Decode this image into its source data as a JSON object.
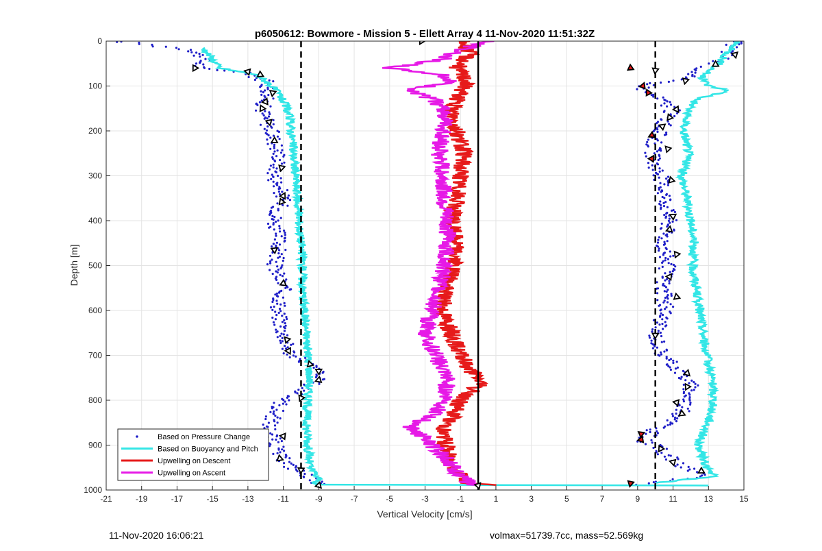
{
  "chart_data": {
    "type": "scatter",
    "title": "p6050612: Bowmore - Mission 5 - Ellett Array 4 11-Nov-2020 11:51:32Z",
    "xlabel": "Vertical Velocity [cm/s]",
    "ylabel": "Depth [m]",
    "xlim": [
      -21,
      15
    ],
    "ylim": [
      0,
      1000
    ],
    "y_reversed": true,
    "grid": true,
    "xticks": [
      -21,
      -19,
      -17,
      -15,
      -13,
      -11,
      -9,
      -7,
      -5,
      -3,
      -1,
      1,
      3,
      5,
      7,
      9,
      11,
      13,
      15
    ],
    "yticks": [
      0,
      100,
      200,
      300,
      400,
      500,
      600,
      700,
      800,
      900,
      1000
    ],
    "legend_position": "bottom-left",
    "reference_lines": [
      {
        "x": -10,
        "style": "dashed",
        "color": "#000000"
      },
      {
        "x": 10,
        "style": "dashed",
        "color": "#000000"
      },
      {
        "x": 0,
        "style": "solid",
        "color": "#000000"
      }
    ],
    "series": [
      {
        "name": "Based on Pressure Change",
        "color": "#1f1fc8",
        "marker": "dot",
        "profiles": [
          {
            "depth": [
              0,
              20,
              40,
              60,
              70,
              90,
              110,
              130,
              150,
              170,
              190,
              220,
              260,
              300,
              350,
              400,
              450,
              500,
              550,
              600,
              650,
              680,
              700,
              720,
              740,
              760,
              780,
              800,
              830,
              860,
              890,
              920,
              950,
              970,
              990
            ],
            "velocity": [
              -20.5,
              -16.0,
              -15.5,
              -15.8,
              -13.0,
              -12.0,
              -11.8,
              -12.0,
              -12.2,
              -12.0,
              -11.8,
              -11.5,
              -11.2,
              -11.5,
              -11.0,
              -11.5,
              -11.2,
              -11.5,
              -11.0,
              -11.3,
              -11.0,
              -10.8,
              -10.5,
              -9.5,
              -9.0,
              -9.2,
              -10.0,
              -11.0,
              -11.5,
              -11.8,
              -11.5,
              -11.3,
              -10.5,
              -9.5,
              -9.0
            ]
          },
          {
            "depth": [
              0,
              20,
              40,
              60,
              80,
              100,
              110,
              130,
              150,
              170,
              190,
              220,
              260,
              300,
              350,
              400,
              450,
              500,
              550,
              600,
              650,
              700,
              740,
              770,
              800,
              840,
              870,
              890,
              910,
              940,
              970,
              990
            ],
            "velocity": [
              14.5,
              14.2,
              13.8,
              12.8,
              11.8,
              9.5,
              9.3,
              10.3,
              11.0,
              10.7,
              10.4,
              10.0,
              9.8,
              10.3,
              10.6,
              10.8,
              10.5,
              10.7,
              10.4,
              10.6,
              10.0,
              10.4,
              11.5,
              12.0,
              11.8,
              11.3,
              9.8,
              9.4,
              10.3,
              11.2,
              12.6,
              8.6
            ]
          }
        ]
      },
      {
        "name": "Based on Buoyancy and Pitch",
        "color": "#33e6e6",
        "marker": "line",
        "profiles": [
          {
            "depth": [
              15,
              40,
              60,
              75,
              95,
              120,
              150,
              180,
              220,
              260,
              300,
              350,
              400,
              450,
              500,
              550,
              600,
              650,
              700,
              750,
              800,
              850,
              900,
              950,
              975,
              988
            ],
            "velocity": [
              -15.5,
              -15.0,
              -14.6,
              -12.5,
              -11.8,
              -11.2,
              -10.8,
              -10.6,
              -10.5,
              -10.4,
              -10.3,
              -10.2,
              -10.1,
              -10.0,
              -9.9,
              -9.9,
              -9.8,
              -9.7,
              -9.6,
              -9.5,
              -9.6,
              -9.7,
              -9.6,
              -9.5,
              -9.0,
              -9.2
            ]
          },
          {
            "depth": [
              988,
              990
            ],
            "velocity": [
              -9.2,
              13.0
            ]
          },
          {
            "depth": [
              0,
              20,
              50,
              80,
              100,
              110,
              130,
              160,
              200,
              250,
              300,
              350,
              400,
              450,
              500,
              550,
              600,
              650,
              700,
              750,
              800,
              850,
              900,
              950,
              970,
              985
            ],
            "velocity": [
              14.6,
              14.2,
              13.6,
              12.6,
              13.0,
              14.2,
              12.3,
              11.8,
              11.6,
              11.9,
              11.5,
              11.8,
              12.0,
              12.2,
              12.1,
              12.3,
              12.5,
              12.7,
              12.9,
              13.2,
              13.3,
              13.0,
              12.4,
              12.9,
              13.3,
              9.8
            ]
          }
        ]
      },
      {
        "name": "Upwelling on Descent",
        "color": "#e61a1a",
        "marker": "line",
        "depth": [
          0,
          30,
          60,
          90,
          100,
          120,
          150,
          200,
          250,
          300,
          350,
          400,
          450,
          500,
          550,
          600,
          650,
          700,
          730,
          760,
          800,
          840,
          870,
          900,
          930,
          960,
          985,
          990
        ],
        "velocity": [
          -0.8,
          -0.5,
          -1.2,
          -0.6,
          -0.8,
          -1.0,
          -1.5,
          -1.2,
          -0.8,
          -1.0,
          -1.2,
          -1.5,
          -1.2,
          -1.4,
          -1.8,
          -2.0,
          -1.5,
          -1.0,
          -0.5,
          0.2,
          -1.0,
          -1.5,
          -2.0,
          -1.8,
          -1.6,
          -1.2,
          -0.5,
          1.5
        ]
      },
      {
        "name": "Upwelling on Ascent",
        "color": "#e619e6",
        "marker": "line",
        "depth": [
          0,
          20,
          40,
          60,
          75,
          90,
          110,
          130,
          160,
          200,
          250,
          300,
          350,
          400,
          450,
          500,
          550,
          600,
          650,
          700,
          750,
          800,
          830,
          860,
          880,
          900,
          930,
          960,
          985,
          990
        ],
        "velocity": [
          0.5,
          -1.0,
          -2.0,
          -5.0,
          -2.0,
          -1.5,
          -4.0,
          -2.5,
          -1.8,
          -2.0,
          -2.2,
          -2.0,
          -1.9,
          -1.8,
          -1.7,
          -1.9,
          -2.2,
          -2.6,
          -3.0,
          -2.4,
          -1.8,
          -1.8,
          -2.5,
          -3.8,
          -3.2,
          -2.6,
          -1.8,
          -1.2,
          -0.5,
          -0.2
        ]
      }
    ],
    "markers": {
      "triangles": [
        {
          "velocity": -16.0,
          "depth": 60,
          "color": "#ffffff"
        },
        {
          "velocity": -13.0,
          "depth": 68,
          "color": "#ffffff"
        },
        {
          "velocity": -12.3,
          "depth": 75,
          "color": "#ffffff"
        },
        {
          "velocity": -11.6,
          "depth": 115,
          "color": "#ffffff"
        },
        {
          "velocity": -12.0,
          "depth": 135,
          "color": "#ffffff"
        },
        {
          "velocity": -12.2,
          "depth": 150,
          "color": "#ffffff"
        },
        {
          "velocity": -11.8,
          "depth": 180,
          "color": "#ffffff"
        },
        {
          "velocity": -11.5,
          "depth": 222,
          "color": "#ffffff"
        },
        {
          "velocity": -11.1,
          "depth": 282,
          "color": "#ffffff"
        },
        {
          "velocity": -11.0,
          "depth": 345,
          "color": "#ffffff"
        },
        {
          "velocity": -11.1,
          "depth": 358,
          "color": "#ffffff"
        },
        {
          "velocity": -11.5,
          "depth": 465,
          "color": "#ffffff"
        },
        {
          "velocity": -11.0,
          "depth": 540,
          "color": "#ffffff"
        },
        {
          "velocity": -10.8,
          "depth": 665,
          "color": "#ffffff"
        },
        {
          "velocity": -10.7,
          "depth": 690,
          "color": "#ffffff"
        },
        {
          "velocity": -9.5,
          "depth": 720,
          "color": "#ffffff"
        },
        {
          "velocity": -9.0,
          "depth": 735,
          "color": "#ffffff"
        },
        {
          "velocity": -9.0,
          "depth": 755,
          "color": "#ffffff"
        },
        {
          "velocity": -10.0,
          "depth": 795,
          "color": "#ffffff"
        },
        {
          "velocity": -11.0,
          "depth": 880,
          "color": "#ffffff"
        },
        {
          "velocity": -11.2,
          "depth": 930,
          "color": "#ffffff"
        },
        {
          "velocity": -10.0,
          "depth": 955,
          "color": "#ffffff"
        },
        {
          "velocity": -9.0,
          "depth": 990,
          "color": "#ffffff"
        },
        {
          "velocity": -3.2,
          "depth": 0,
          "color": "#ffffff"
        },
        {
          "velocity": 0.0,
          "depth": 990,
          "color": "#ffffff"
        },
        {
          "velocity": 8.6,
          "depth": 60,
          "color": "#e61a1a"
        },
        {
          "velocity": 10.0,
          "depth": 65,
          "color": "#ffffff"
        },
        {
          "velocity": 9.3,
          "depth": 100,
          "color": "#e61a1a"
        },
        {
          "velocity": 9.6,
          "depth": 115,
          "color": "#e61a1a"
        },
        {
          "velocity": 14.5,
          "depth": 30,
          "color": "#ffffff"
        },
        {
          "velocity": 13.4,
          "depth": 52,
          "color": "#ffffff"
        },
        {
          "velocity": 11.7,
          "depth": 88,
          "color": "#ffffff"
        },
        {
          "velocity": 11.2,
          "depth": 152,
          "color": "#ffffff"
        },
        {
          "velocity": 10.8,
          "depth": 170,
          "color": "#ffffff"
        },
        {
          "velocity": 10.4,
          "depth": 190,
          "color": "#ffffff"
        },
        {
          "velocity": 9.8,
          "depth": 210,
          "color": "#e61a1a"
        },
        {
          "velocity": 10.7,
          "depth": 240,
          "color": "#ffffff"
        },
        {
          "velocity": 9.8,
          "depth": 262,
          "color": "#e61a1a"
        },
        {
          "velocity": 10.9,
          "depth": 310,
          "color": "#ffffff"
        },
        {
          "velocity": 11.0,
          "depth": 390,
          "color": "#ffffff"
        },
        {
          "velocity": 10.8,
          "depth": 420,
          "color": "#ffffff"
        },
        {
          "velocity": 11.2,
          "depth": 475,
          "color": "#ffffff"
        },
        {
          "velocity": 10.8,
          "depth": 525,
          "color": "#ffffff"
        },
        {
          "velocity": 11.2,
          "depth": 570,
          "color": "#ffffff"
        },
        {
          "velocity": 10.0,
          "depth": 655,
          "color": "#ffffff"
        },
        {
          "velocity": 11.8,
          "depth": 740,
          "color": "#ffffff"
        },
        {
          "velocity": 11.8,
          "depth": 770,
          "color": "#ffffff"
        },
        {
          "velocity": 11.2,
          "depth": 805,
          "color": "#ffffff"
        },
        {
          "velocity": 11.5,
          "depth": 830,
          "color": "#ffffff"
        },
        {
          "velocity": 9.2,
          "depth": 875,
          "color": "#e61a1a"
        },
        {
          "velocity": 9.2,
          "depth": 888,
          "color": "#e61a1a"
        },
        {
          "velocity": 10.3,
          "depth": 908,
          "color": "#ffffff"
        },
        {
          "velocity": 11.0,
          "depth": 938,
          "color": "#ffffff"
        },
        {
          "velocity": 12.6,
          "depth": 958,
          "color": "#ffffff"
        },
        {
          "velocity": 8.6,
          "depth": 985,
          "color": "#e61a1a"
        }
      ]
    }
  },
  "footer": {
    "left": "11-Nov-2020 16:06:21",
    "right": "volmax=51739.7cc, mass=52.569kg"
  }
}
